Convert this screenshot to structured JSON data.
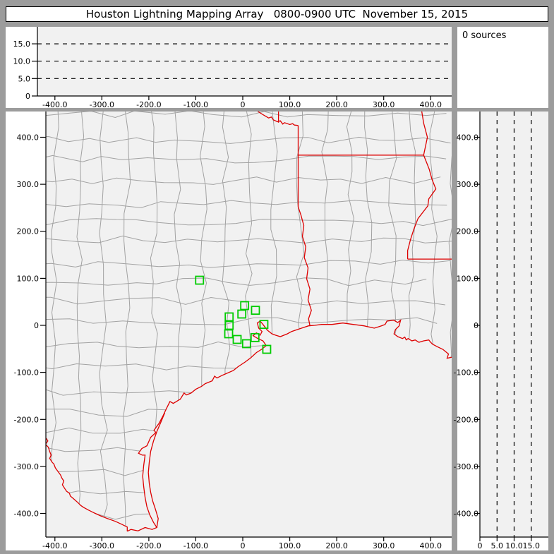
{
  "title": "Houston Lightning Mapping Array   0800-0900 UTC  November 15, 2015",
  "sources_box": {
    "label": "0 sources"
  },
  "colors": {
    "frame": "#9c9c9c",
    "cell_bg": "#ffffff",
    "plot_bg": "#f1f1f1",
    "county_line": "#a2a2a2",
    "state_border": "#dd0000",
    "station": "#00cc00",
    "axis": "#000000",
    "dashed_line": "#000000"
  },
  "axes": {
    "ew": {
      "tick_km": [
        -400,
        -300,
        -200,
        -100,
        0,
        100,
        200,
        300,
        400
      ],
      "tick_labels": [
        "-400.0",
        "-300.0",
        "-200.0",
        "-100.0",
        "0",
        "100.0",
        "200.0",
        "300.0",
        "400.0"
      ]
    },
    "ns": {
      "tick_km": [
        400,
        300,
        200,
        100,
        0,
        -100,
        -200,
        -300,
        -400
      ],
      "tick_labels": [
        "400.0",
        "300.0",
        "200.0",
        "100.0",
        "0",
        "-100.0",
        "-200.0",
        "-300.0",
        "-400.0"
      ]
    },
    "alt": {
      "tick_km": [
        0,
        5,
        10,
        15
      ],
      "tick_labels": [
        "0",
        "5.0",
        "10.0",
        "15.0"
      ],
      "dashed_km": [
        5,
        10,
        15
      ],
      "range_km": [
        0,
        20
      ]
    }
  },
  "chart_data": {
    "type": "scatter",
    "title": "Houston Lightning Mapping Array 0800-0900 UTC November 15, 2015",
    "source_count": 0,
    "annotations": [
      "0 sources"
    ],
    "panels": [
      {
        "name": "altitude-vs-east-west",
        "xlim_km": [
          -437,
          445
        ],
        "ylim_km": [
          0,
          20
        ],
        "grid": "dashed horizontal at 5,10,15 km",
        "points": []
      },
      {
        "name": "plan-view-map",
        "xlim_km": [
          -419,
          445
        ],
        "ylim_km": [
          -450,
          455
        ],
        "points": []
      },
      {
        "name": "altitude-vs-north-south",
        "xlim_km": [
          0,
          20
        ],
        "ylim_km": [
          -450,
          455
        ],
        "grid": "dashed vertical at 5,10,15 km",
        "points": []
      }
    ],
    "stations_km": [
      [
        -92,
        96
      ],
      [
        4,
        42
      ],
      [
        27,
        32
      ],
      [
        -2,
        24
      ],
      [
        -29,
        18
      ],
      [
        45,
        2
      ],
      [
        -29,
        0
      ],
      [
        -30,
        -18
      ],
      [
        26,
        -26
      ],
      [
        -12,
        -30
      ],
      [
        8,
        -39
      ],
      [
        51,
        -51
      ]
    ]
  },
  "map": {
    "borders_km": {
      "red_river": [
        [
          32,
          455
        ],
        [
          43,
          448
        ],
        [
          50,
          444
        ],
        [
          55,
          441
        ],
        [
          61,
          443
        ],
        [
          65,
          437
        ],
        [
          74,
          433
        ],
        [
          80,
          435
        ],
        [
          85,
          428
        ],
        [
          89,
          431
        ],
        [
          100,
          427
        ],
        [
          106,
          429
        ],
        [
          110,
          426
        ],
        [
          118,
          425
        ]
      ],
      "ok_ar_border": [
        [
          76,
          455
        ],
        [
          76,
          431
        ]
      ],
      "tx_ar_la_straight": [
        [
          118,
          425
        ],
        [
          118,
          252
        ]
      ],
      "sabine_river": [
        [
          118,
          252
        ],
        [
          124,
          234
        ],
        [
          130,
          212
        ],
        [
          127,
          189
        ],
        [
          134,
          167
        ],
        [
          131,
          144
        ],
        [
          139,
          122
        ],
        [
          136,
          99
        ],
        [
          143,
          77
        ],
        [
          139,
          54
        ],
        [
          146,
          32
        ],
        [
          140,
          14
        ],
        [
          143,
          -1
        ]
      ],
      "ar_la_border": [
        [
          118,
          362
        ],
        [
          385,
          362
        ]
      ],
      "mississippi_river": [
        [
          381,
          455
        ],
        [
          385,
          430
        ],
        [
          393,
          400
        ],
        [
          385,
          362
        ],
        [
          397,
          332
        ],
        [
          403,
          310
        ],
        [
          411,
          290
        ],
        [
          396,
          269
        ],
        [
          394,
          254
        ],
        [
          373,
          227
        ],
        [
          364,
          204
        ],
        [
          357,
          182
        ],
        [
          351,
          159
        ],
        [
          351,
          141
        ]
      ],
      "la_ms_border": [
        [
          351,
          141
        ],
        [
          453,
          141
        ]
      ],
      "coastline": [
        [
          453,
          -66
        ],
        [
          435,
          -70
        ],
        [
          438,
          -61
        ],
        [
          426,
          -51
        ],
        [
          415,
          -46
        ],
        [
          404,
          -40
        ],
        [
          400,
          -36
        ],
        [
          396,
          -31
        ],
        [
          385,
          -33
        ],
        [
          375,
          -36
        ],
        [
          367,
          -31
        ],
        [
          360,
          -33
        ],
        [
          352,
          -28
        ],
        [
          348,
          -31
        ],
        [
          345,
          -25
        ],
        [
          340,
          -28
        ],
        [
          330,
          -24
        ],
        [
          322,
          -18
        ],
        [
          325,
          -9
        ],
        [
          333,
          -1
        ],
        [
          336,
          11
        ],
        [
          330,
          6
        ],
        [
          321,
          11
        ],
        [
          307,
          9
        ],
        [
          303,
          2
        ],
        [
          295,
          -1
        ],
        [
          280,
          -6
        ],
        [
          258,
          -1
        ],
        [
          235,
          2
        ],
        [
          213,
          5
        ],
        [
          190,
          2
        ],
        [
          168,
          2
        ],
        [
          153,
          0
        ],
        [
          140,
          -1
        ],
        [
          125,
          -6
        ],
        [
          104,
          -13
        ],
        [
          95,
          -18
        ],
        [
          80,
          -24
        ],
        [
          70,
          -21
        ],
        [
          62,
          -18
        ],
        [
          52,
          -10
        ],
        [
          43,
          2
        ],
        [
          37,
          9
        ],
        [
          31,
          5
        ],
        [
          34,
          -6
        ],
        [
          41,
          -13
        ],
        [
          37,
          -21
        ],
        [
          29,
          -16
        ],
        [
          22,
          -22
        ],
        [
          32,
          -28
        ],
        [
          43,
          -33
        ],
        [
          50,
          -43
        ],
        [
          40,
          -51
        ],
        [
          29,
          -58
        ],
        [
          17,
          -69
        ],
        [
          5,
          -78
        ],
        [
          -10,
          -88
        ],
        [
          -20,
          -96
        ],
        [
          -43,
          -106
        ],
        [
          -55,
          -112
        ],
        [
          -60,
          -108
        ],
        [
          -65,
          -118
        ],
        [
          -80,
          -124
        ],
        [
          -88,
          -130
        ],
        [
          -100,
          -136
        ],
        [
          -110,
          -144
        ],
        [
          -120,
          -148
        ],
        [
          -125,
          -144
        ],
        [
          -133,
          -157
        ],
        [
          -148,
          -166
        ],
        [
          -155,
          -162
        ],
        [
          -163,
          -178
        ],
        [
          -170,
          -193
        ],
        [
          -178,
          -208
        ],
        [
          -189,
          -223
        ],
        [
          -185,
          -228
        ],
        [
          -196,
          -238
        ],
        [
          -204,
          -256
        ],
        [
          -215,
          -262
        ],
        [
          -222,
          -272
        ],
        [
          -214,
          -276
        ],
        [
          -208,
          -276
        ],
        [
          -211,
          -298
        ],
        [
          -213,
          -321
        ],
        [
          -211,
          -343
        ],
        [
          -208,
          -366
        ],
        [
          -204,
          -386
        ],
        [
          -198,
          -403
        ],
        [
          -190,
          -419
        ],
        [
          -183,
          -430
        ],
        [
          -193,
          -434
        ],
        [
          -208,
          -430
        ],
        [
          -223,
          -437
        ],
        [
          -238,
          -434
        ],
        [
          -246,
          -438
        ]
      ],
      "barrier_island": [
        [
          -166,
          -186
        ],
        [
          -174,
          -205
        ],
        [
          -183,
          -226
        ],
        [
          -190,
          -246
        ],
        [
          -196,
          -268
        ],
        [
          -199,
          -291
        ],
        [
          -201,
          -313
        ],
        [
          -199,
          -336
        ],
        [
          -196,
          -355
        ],
        [
          -192,
          -373
        ],
        [
          -186,
          -391
        ],
        [
          -180,
          -411
        ],
        [
          -183,
          -430
        ]
      ],
      "rio_grande": [
        [
          -457,
          -196
        ],
        [
          -453,
          -204
        ],
        [
          -446,
          -213
        ],
        [
          -438,
          -220
        ],
        [
          -434,
          -228
        ],
        [
          -426,
          -234
        ],
        [
          -418,
          -241
        ],
        [
          -415,
          -246
        ],
        [
          -420,
          -253
        ],
        [
          -414,
          -259
        ],
        [
          -411,
          -268
        ],
        [
          -408,
          -276
        ],
        [
          -411,
          -283
        ],
        [
          -406,
          -291
        ],
        [
          -402,
          -295
        ],
        [
          -399,
          -303
        ],
        [
          -394,
          -310
        ],
        [
          -388,
          -318
        ],
        [
          -385,
          -325
        ],
        [
          -381,
          -331
        ],
        [
          -384,
          -339
        ],
        [
          -379,
          -347
        ],
        [
          -375,
          -353
        ],
        [
          -369,
          -357
        ],
        [
          -367,
          -363
        ],
        [
          -360,
          -369
        ],
        [
          -351,
          -377
        ],
        [
          -345,
          -383
        ],
        [
          -339,
          -387
        ],
        [
          -328,
          -393
        ],
        [
          -316,
          -399
        ],
        [
          -303,
          -405
        ],
        [
          -288,
          -411
        ],
        [
          -271,
          -417
        ],
        [
          -258,
          -423
        ],
        [
          -246,
          -429
        ],
        [
          -246,
          -438
        ]
      ]
    }
  }
}
